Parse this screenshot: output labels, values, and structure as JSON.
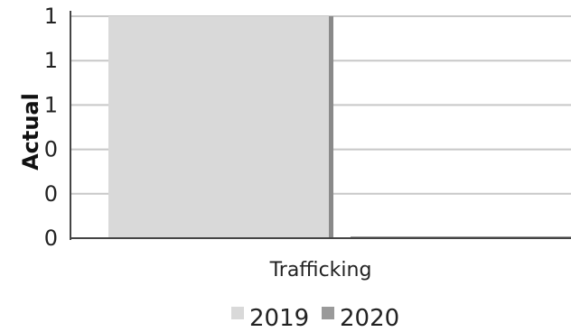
{
  "chart_data": {
    "type": "bar",
    "categories": [
      "Trafficking"
    ],
    "series": [
      {
        "name": "2019",
        "values": [
          1
        ],
        "color": "#d9d9d9"
      },
      {
        "name": "2020",
        "values": [
          0
        ],
        "color": "#9a9a9a"
      }
    ],
    "xlabel": "",
    "ylabel": "Actual",
    "ylim": [
      0,
      1
    ],
    "yticks": [
      0,
      0.2,
      0.4,
      0.6,
      0.8,
      1
    ],
    "ytick_labels": [
      "0",
      "0",
      "0",
      "1",
      "1",
      "1"
    ],
    "grid": true,
    "legend_position": "bottom"
  }
}
